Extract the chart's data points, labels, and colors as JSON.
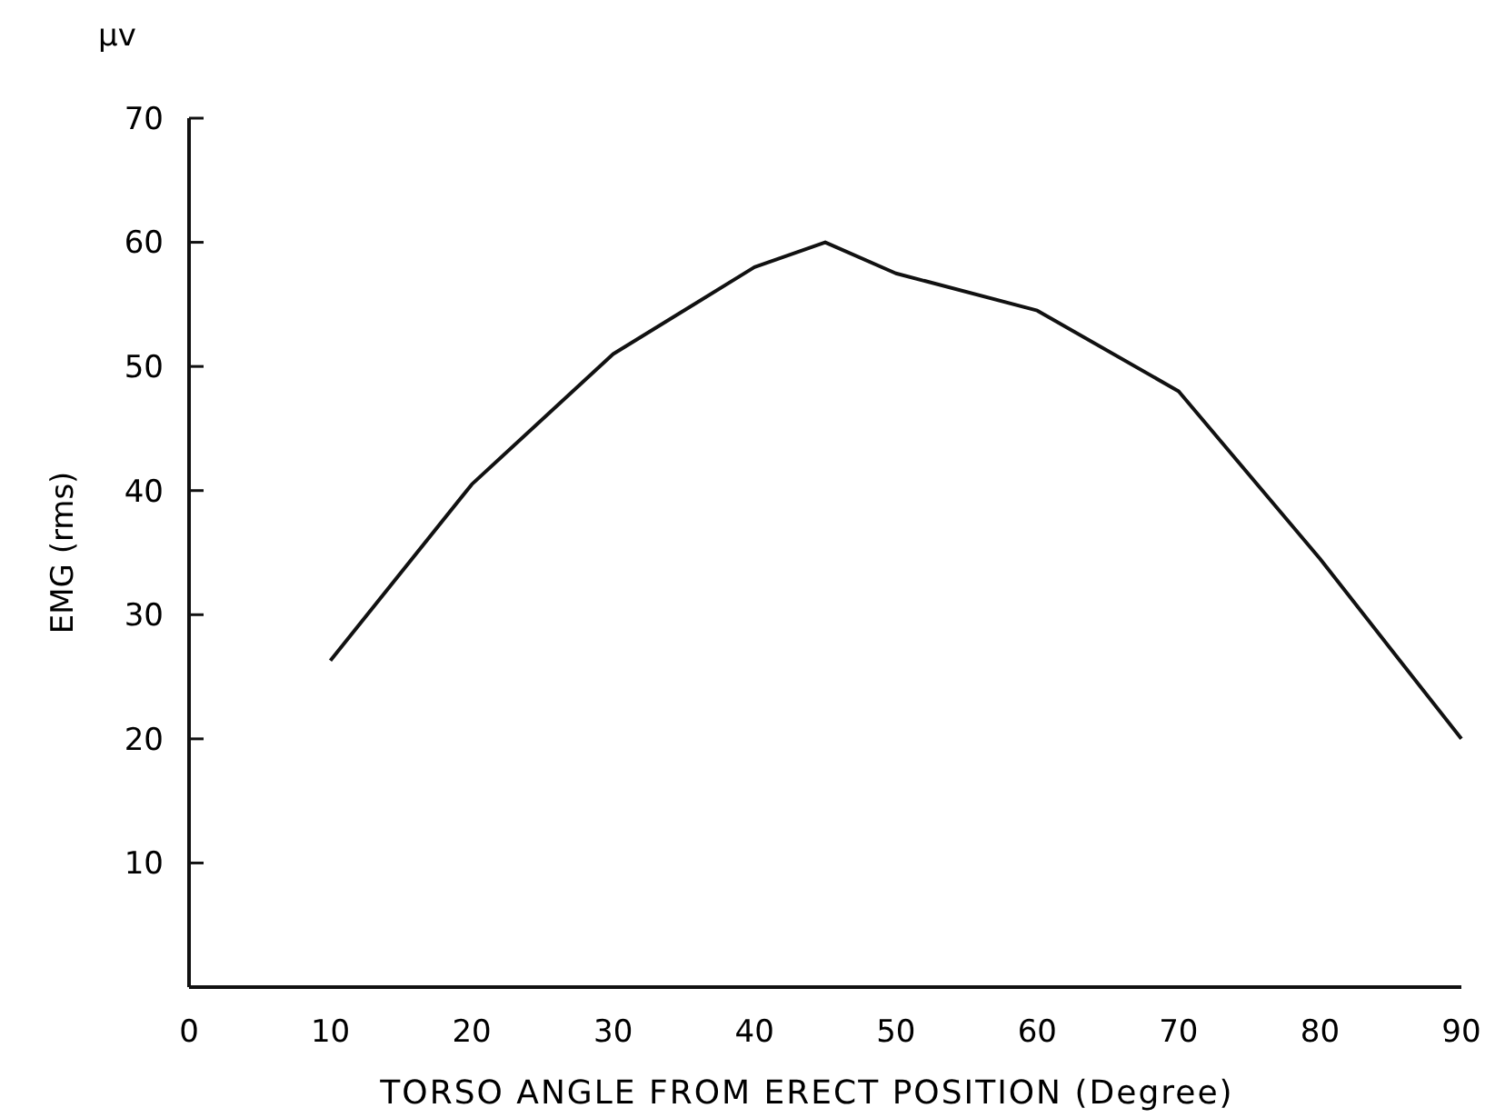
{
  "chart_data": {
    "type": "line",
    "xlabel": "TORSO ANGLE FROM ERECT POSITION  (Degree)",
    "ylabel": "EMG (rms)",
    "annotations": [
      "μv"
    ],
    "x": [
      10,
      20,
      30,
      40,
      45,
      50,
      60,
      70,
      80,
      90
    ],
    "series": [
      {
        "color": "#111111",
        "values": [
          26.3,
          40.5,
          51,
          58,
          60,
          57.5,
          54.5,
          48,
          34.5,
          20
        ]
      }
    ],
    "xlim": [
      0,
      90
    ],
    "xticks": [
      0,
      10,
      20,
      30,
      40,
      50,
      60,
      70,
      80,
      90
    ],
    "ylim": [
      0,
      70
    ],
    "yticks": [
      10,
      20,
      30,
      40,
      50,
      60,
      70
    ],
    "line_style": "solid"
  }
}
